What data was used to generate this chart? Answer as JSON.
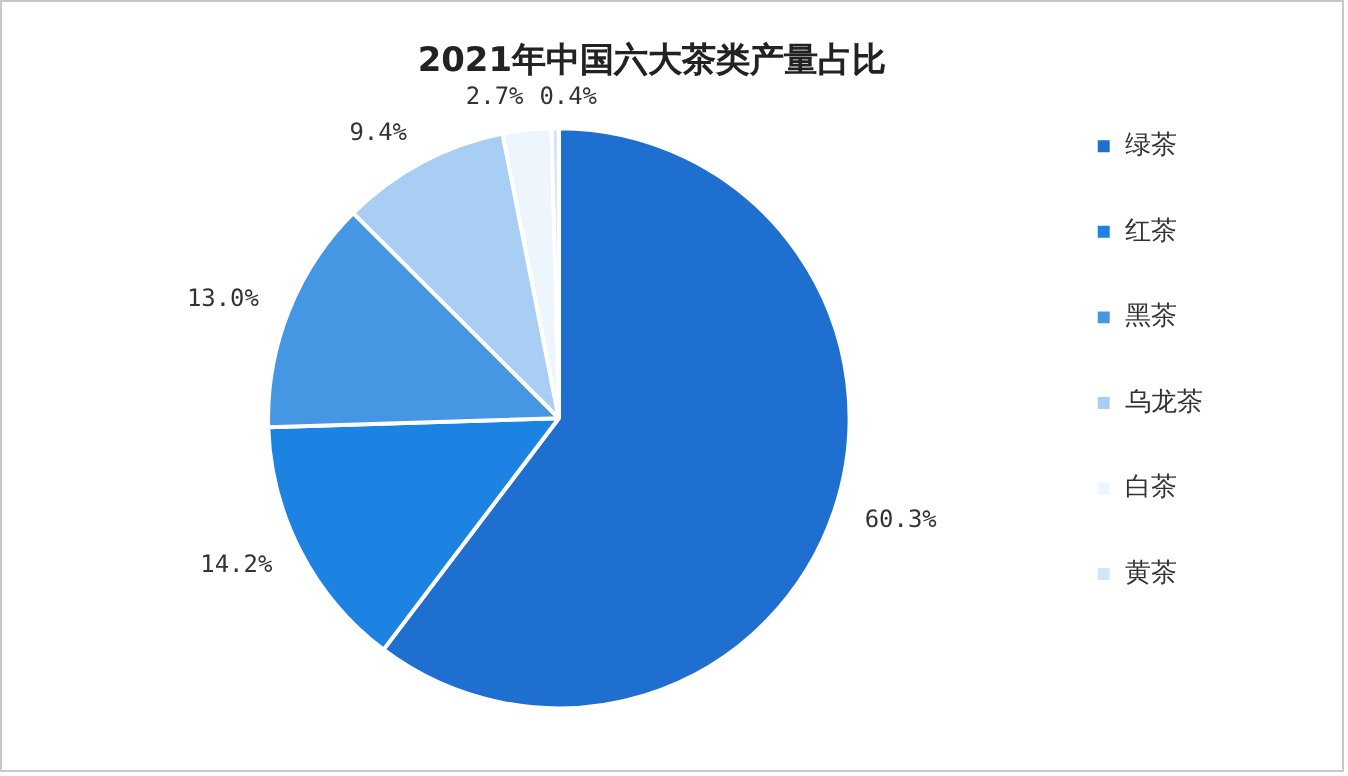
{
  "chart_data": {
    "type": "pie",
    "title": "2021年中国六大茶类产量占比",
    "categories": [
      "绿茶",
      "红茶",
      "黑茶",
      "乌龙茶",
      "白茶",
      "黄茶"
    ],
    "values": [
      60.3,
      14.2,
      13.0,
      9.4,
      2.7,
      0.4
    ],
    "value_labels": [
      "60.3%",
      "14.2%",
      "13.0%",
      "9.4%",
      "2.7%",
      "0.4%"
    ],
    "colors": [
      "#1f6fd1",
      "#1c83e3",
      "#4596e3",
      "#a8cff3",
      "#edf5fd",
      "#d3e6f8"
    ],
    "legend": "right"
  }
}
